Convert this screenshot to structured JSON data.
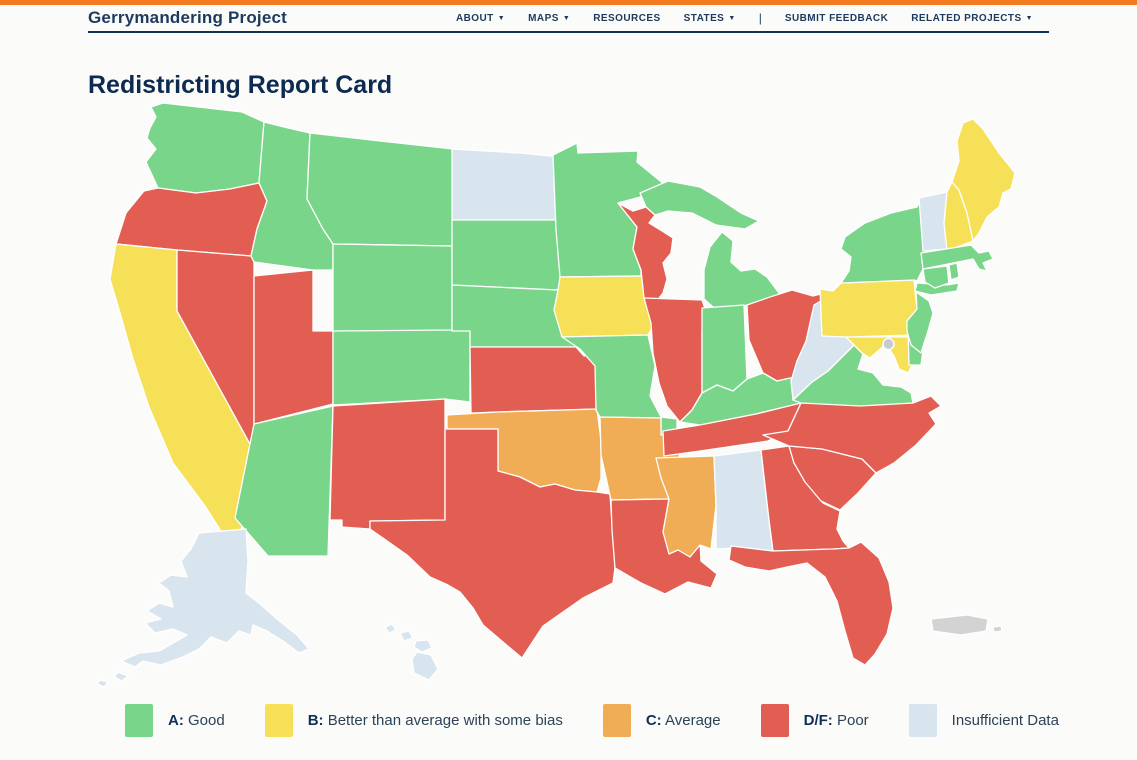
{
  "theme": {
    "accent_bar_color": "#f47b20",
    "navy": "#13325a",
    "background": "#fbfbfa"
  },
  "header": {
    "brand": "Gerrymandering Project",
    "divider": "|",
    "nav": [
      {
        "label": "ABOUT",
        "dropdown": true
      },
      {
        "label": "MAPS",
        "dropdown": true
      },
      {
        "label": "RESOURCES",
        "dropdown": false
      },
      {
        "label": "STATES",
        "dropdown": true
      },
      {
        "label": "SUBMIT FEEDBACK",
        "dropdown": false,
        "divider_before": true
      },
      {
        "label": "RELATED PROJECTS",
        "dropdown": true
      }
    ]
  },
  "page": {
    "title": "Redistricting Report Card"
  },
  "legend": {
    "colors": {
      "A": "#79d589",
      "B": "#f6e058",
      "C": "#f0ad55",
      "DF": "#e25d52",
      "ID": "#d9e5ee",
      "NA": "#d3d3d3",
      "DC": "#c7ccd1"
    },
    "items": [
      {
        "grade": "A",
        "prefix": "A:",
        "label": "Good"
      },
      {
        "grade": "B",
        "prefix": "B:",
        "label": "Better than average with some bias"
      },
      {
        "grade": "C",
        "prefix": "C:",
        "label": "Average"
      },
      {
        "grade": "DF",
        "prefix": "D/F:",
        "label": "Poor"
      },
      {
        "grade": "ID",
        "prefix": "",
        "label": "Insufficient Data"
      }
    ]
  },
  "map": {
    "states": [
      {
        "id": "WA",
        "name": "washington",
        "grade": "A"
      },
      {
        "id": "OR",
        "name": "oregon",
        "grade": "DF"
      },
      {
        "id": "CA",
        "name": "california",
        "grade": "B"
      },
      {
        "id": "NV",
        "name": "nevada",
        "grade": "DF"
      },
      {
        "id": "ID",
        "name": "idaho",
        "grade": "A"
      },
      {
        "id": "MT",
        "name": "montana",
        "grade": "A"
      },
      {
        "id": "WY",
        "name": "wyoming",
        "grade": "A"
      },
      {
        "id": "UT",
        "name": "utah",
        "grade": "DF"
      },
      {
        "id": "CO",
        "name": "colorado",
        "grade": "A"
      },
      {
        "id": "AZ",
        "name": "arizona",
        "grade": "A"
      },
      {
        "id": "NM",
        "name": "new-mexico",
        "grade": "DF"
      },
      {
        "id": "ND",
        "name": "north-dakota",
        "grade": "ID"
      },
      {
        "id": "SD",
        "name": "south-dakota",
        "grade": "A"
      },
      {
        "id": "NE",
        "name": "nebraska",
        "grade": "A"
      },
      {
        "id": "KS",
        "name": "kansas",
        "grade": "DF"
      },
      {
        "id": "OK",
        "name": "oklahoma",
        "grade": "C"
      },
      {
        "id": "TX",
        "name": "texas",
        "grade": "DF"
      },
      {
        "id": "MN",
        "name": "minnesota",
        "grade": "A"
      },
      {
        "id": "IA",
        "name": "iowa",
        "grade": "B"
      },
      {
        "id": "MO",
        "name": "missouri",
        "grade": "A"
      },
      {
        "id": "AR",
        "name": "arkansas",
        "grade": "C"
      },
      {
        "id": "LA",
        "name": "louisiana",
        "grade": "DF"
      },
      {
        "id": "WI",
        "name": "wisconsin",
        "grade": "DF"
      },
      {
        "id": "IL",
        "name": "illinois",
        "grade": "DF"
      },
      {
        "id": "MI",
        "name": "michigan",
        "grade": "A"
      },
      {
        "id": "IN",
        "name": "indiana",
        "grade": "A"
      },
      {
        "id": "OH",
        "name": "ohio",
        "grade": "DF"
      },
      {
        "id": "KY",
        "name": "kentucky",
        "grade": "A"
      },
      {
        "id": "TN",
        "name": "tennessee",
        "grade": "DF"
      },
      {
        "id": "MS",
        "name": "mississippi",
        "grade": "C"
      },
      {
        "id": "AL",
        "name": "alabama",
        "grade": "ID"
      },
      {
        "id": "GA",
        "name": "georgia",
        "grade": "DF"
      },
      {
        "id": "FL",
        "name": "florida",
        "grade": "DF"
      },
      {
        "id": "SC",
        "name": "south-carolina",
        "grade": "DF"
      },
      {
        "id": "NC",
        "name": "north-carolina",
        "grade": "DF"
      },
      {
        "id": "VA",
        "name": "virginia",
        "grade": "A"
      },
      {
        "id": "WV",
        "name": "west-virginia",
        "grade": "ID"
      },
      {
        "id": "MD",
        "name": "maryland",
        "grade": "B"
      },
      {
        "id": "DE",
        "name": "delaware",
        "grade": "A"
      },
      {
        "id": "PA",
        "name": "pennsylvania",
        "grade": "B"
      },
      {
        "id": "NJ",
        "name": "new-jersey",
        "grade": "A"
      },
      {
        "id": "NY",
        "name": "new-york",
        "grade": "A"
      },
      {
        "id": "VT",
        "name": "vermont",
        "grade": "ID"
      },
      {
        "id": "NH",
        "name": "new-hampshire",
        "grade": "B"
      },
      {
        "id": "ME",
        "name": "maine",
        "grade": "B"
      },
      {
        "id": "MA",
        "name": "massachusetts",
        "grade": "A"
      },
      {
        "id": "CT",
        "name": "connecticut",
        "grade": "A"
      },
      {
        "id": "RI",
        "name": "rhode-island",
        "grade": "A"
      },
      {
        "id": "AK",
        "name": "alaska",
        "grade": "ID"
      },
      {
        "id": "HI",
        "name": "hawaii",
        "grade": "ID"
      },
      {
        "id": "PR",
        "name": "puerto-rico",
        "grade": "NA"
      },
      {
        "id": "DC",
        "name": "district-of-columbia",
        "grade": "DC"
      }
    ]
  }
}
